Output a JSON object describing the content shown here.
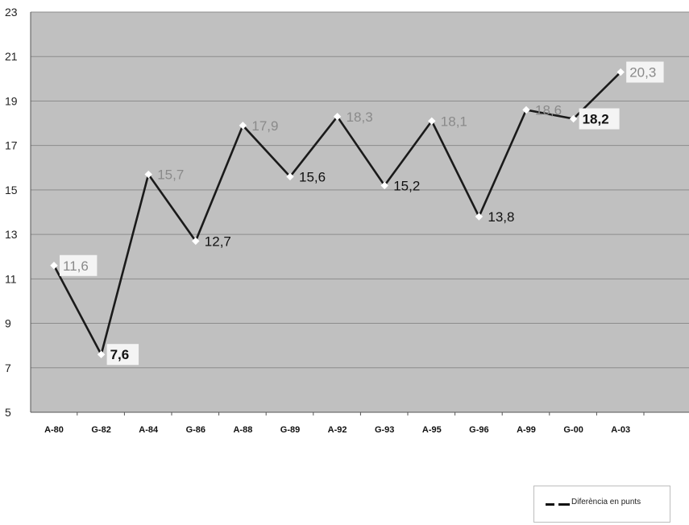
{
  "chart_data": {
    "type": "line",
    "categories": [
      "A-80",
      "G-82",
      "A-84",
      "G-86",
      "A-88",
      "G-89",
      "A-92",
      "G-93",
      "A-95",
      "G-96",
      "A-99",
      "G-00",
      "A-03"
    ],
    "series": [
      {
        "name": "Diferència en punts",
        "values": [
          11.6,
          7.6,
          15.7,
          12.7,
          17.9,
          15.6,
          18.3,
          15.2,
          18.1,
          13.8,
          18.6,
          18.2,
          20.3
        ]
      }
    ],
    "data_labels": [
      "11,6",
      "7,6",
      "15,7",
      "12,7",
      "17,9",
      "15,6",
      "18,3",
      "15,2",
      "18,1",
      "13,8",
      "18,6",
      "18,2",
      "20,3"
    ],
    "label_styles": [
      "boxed-gray",
      "boxed-bold",
      "gray",
      "black",
      "gray",
      "black",
      "gray",
      "black",
      "gray",
      "black",
      "gray",
      "boxed-bold",
      "boxed-gray"
    ],
    "y_ticks": [
      "5",
      "7",
      "9",
      "11",
      "13",
      "15",
      "17",
      "19",
      "21",
      "23"
    ],
    "ylim": [
      5,
      23
    ],
    "grid": true,
    "legend_position": "bottom-right",
    "colors": {
      "plot_bg": "#c0c0c0",
      "gridline": "#8c8c8c",
      "line": "#1a1a1a",
      "label_gray": "#8a8a8a",
      "label_black": "#111111",
      "label_box": "#f4f4f4"
    }
  },
  "legend": {
    "label": "Diferència en punts"
  }
}
